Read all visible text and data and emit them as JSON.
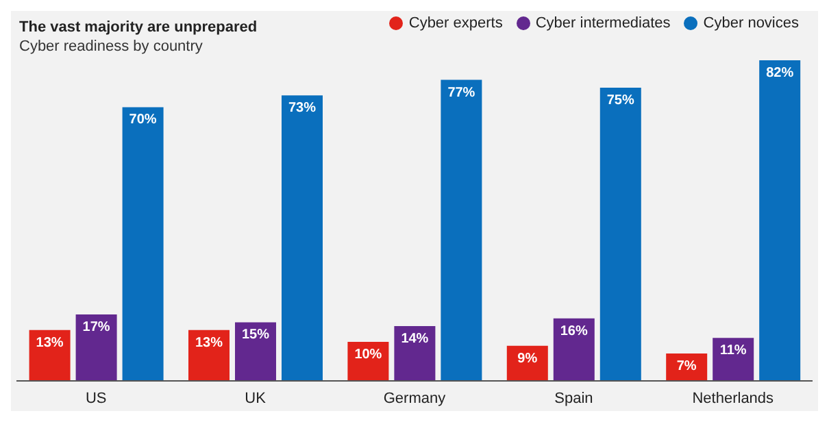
{
  "chart_data": {
    "type": "bar",
    "title": "The vast majority are unprepared",
    "subtitle": "Cyber readiness by country",
    "categories": [
      "US",
      "UK",
      "Germany",
      "Spain",
      "Netherlands"
    ],
    "series": [
      {
        "name": "Cyber experts",
        "color": "#e2231a",
        "values": [
          13,
          13,
          10,
          9,
          7
        ],
        "value_labels": [
          "13%",
          "13%",
          "10%",
          "9%",
          "7%"
        ]
      },
      {
        "name": "Cyber intermediates",
        "color": "#62288f",
        "values": [
          17,
          15,
          14,
          16,
          11
        ],
        "value_labels": [
          "17%",
          "15%",
          "14%",
          "16%",
          "11%"
        ]
      },
      {
        "name": "Cyber novices",
        "color": "#0a6fbd",
        "values": [
          70,
          73,
          77,
          75,
          82
        ],
        "value_labels": [
          "70%",
          "73%",
          "77%",
          "75%",
          "82%"
        ]
      }
    ],
    "legend": "top right",
    "grid": false
  }
}
